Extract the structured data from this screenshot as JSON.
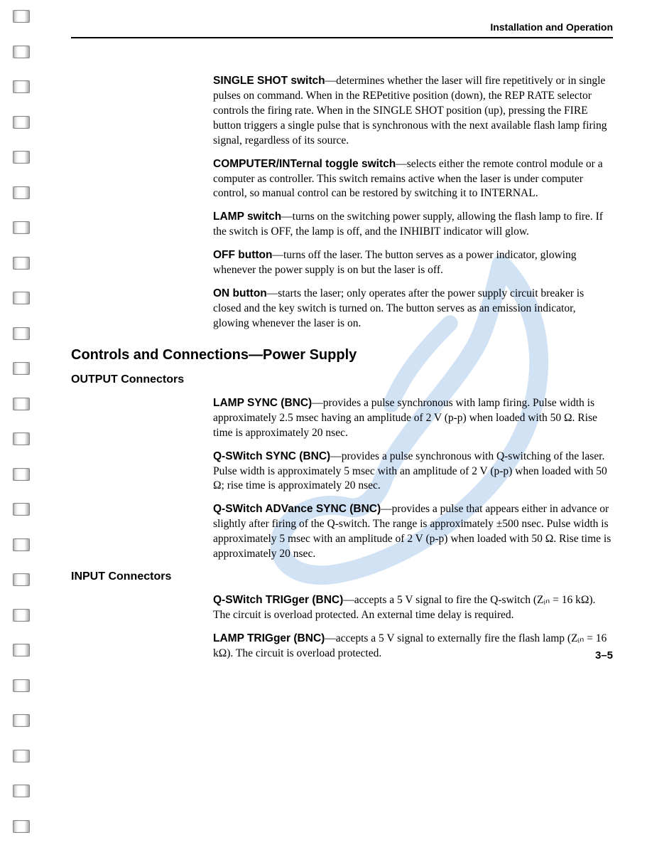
{
  "header": {
    "title": "Installation and Operation"
  },
  "entries_top": [
    {
      "term": "SINGLE SHOT switch",
      "text": "—determines whether the laser will fire repetitively or in single pulses on command. When in the REPetitive position (down), the REP RATE selector controls the firing rate. When in the SINGLE SHOT position (up), pressing the FIRE button triggers a single pulse that is synchronous with the next available flash lamp firing signal, regardless of its source."
    },
    {
      "term": "COMPUTER/INTernal toggle switch",
      "text": "—selects either the remote control module or a computer as controller. This switch remains active when the laser is under computer control, so manual control can be restored by switching it to INTERNAL."
    },
    {
      "term": "LAMP switch",
      "text": "—turns on the switching power supply, allowing the flash lamp to fire. If the switch is OFF, the lamp is off, and the INHIBIT indicator will glow."
    },
    {
      "term": "OFF button",
      "text": "—turns off the laser. The button serves as a power indicator, glowing whenever the power supply is on but the laser is off."
    },
    {
      "term": "ON button",
      "text": "—starts the laser; only operates after the power supply circuit breaker is closed and the key switch is turned on. The button serves as an emission indicator, glowing whenever the laser is on."
    }
  ],
  "section_heading": "Controls and Connections—Power Supply",
  "output": {
    "heading": "OUTPUT Connectors",
    "entries": [
      {
        "term": "LAMP SYNC (BNC)",
        "text": "—provides a pulse synchronous with lamp firing. Pulse width is approximately 2.5 msec having an amplitude of 2 V (p-p) when loaded with 50 Ω. Rise time is approximately 20 nsec."
      },
      {
        "term": "Q-SWitch SYNC (BNC)",
        "text": "—provides a pulse synchronous with Q-switching of the laser. Pulse width is approximately 5 msec with an amplitude of 2 V (p-p) when loaded with 50 Ω; rise time is approximately 20 nsec."
      },
      {
        "term": "Q-SWitch ADVance SYNC (BNC)",
        "text": "—provides a pulse that appears either in advance or slightly after firing of the Q-switch. The range is approximately ±500 nsec. Pulse width is approximately 5 msec with an amplitude of 2 V (p-p) when loaded with 50 Ω. Rise time is approximately 20 nsec."
      }
    ]
  },
  "input": {
    "heading": "INPUT Connectors",
    "entries": [
      {
        "term": "Q-SWitch TRIGger (BNC)",
        "text": "—accepts a 5 V signal to fire the Q-switch (Zᵢₙ = 16 kΩ). The circuit is overload protected. An external time delay is required."
      },
      {
        "term": "LAMP TRIGger (BNC)",
        "text": "—accepts a 5 V signal to externally fire the flash lamp (Zᵢₙ = 16 kΩ). The circuit is overload protected."
      }
    ]
  },
  "page_number": "3–5",
  "watermark_color": "#6aa0e0",
  "spiral_count": 24
}
